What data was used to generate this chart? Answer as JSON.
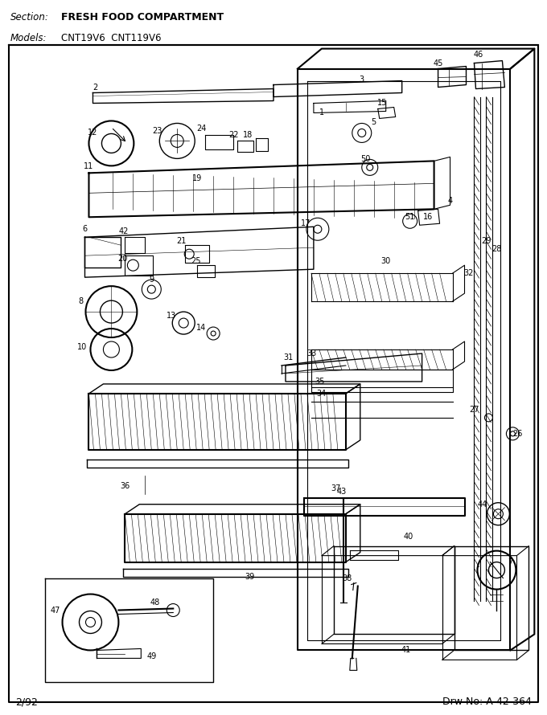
{
  "section_label": "Section:",
  "section_text": "FRESH FOOD COMPARTMENT",
  "models_label": "Models:",
  "models_text": "CNT19V6  CNT119V6",
  "footer_left": "2/92",
  "footer_right": "Drw No: A-42-364",
  "bg_color": "#ffffff",
  "border_color": "#000000",
  "text_color": "#000000",
  "fig_width": 6.8,
  "fig_height": 8.9,
  "dpi": 100
}
